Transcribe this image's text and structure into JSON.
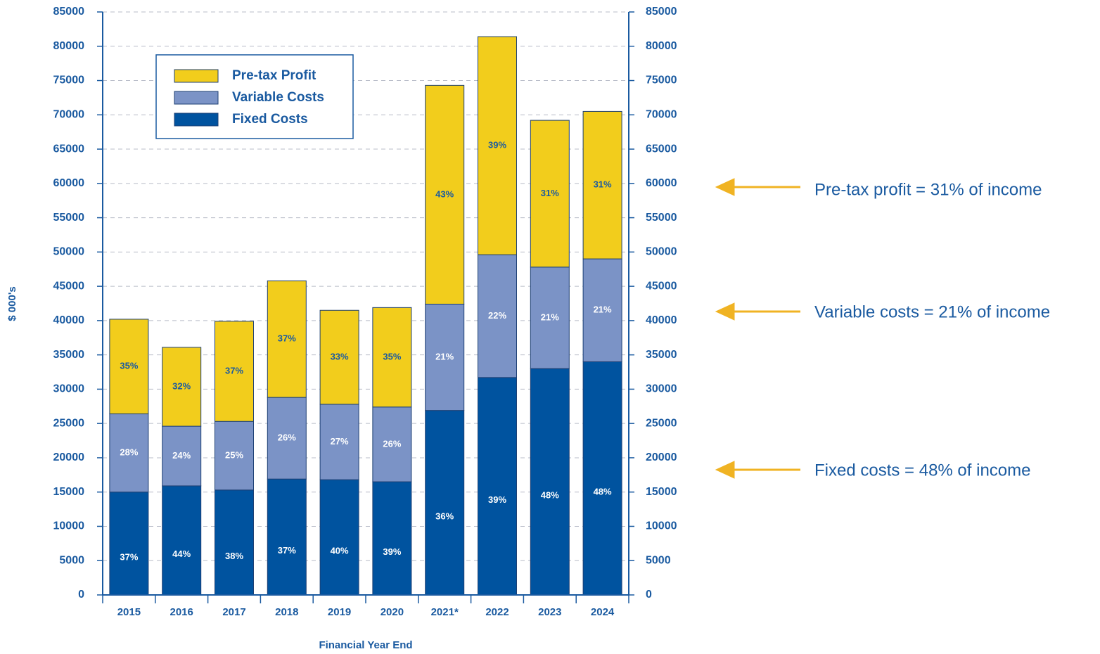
{
  "chart_data": {
    "type": "stacked_bar",
    "y_label": "$ 000's",
    "x_label": "Financial Year End",
    "categories": [
      "2015",
      "2016",
      "2017",
      "2018",
      "2019",
      "2020",
      "2021*",
      "2022",
      "2023",
      "2024"
    ],
    "series": [
      {
        "name": "Fixed Costs",
        "color": "#00539f",
        "label_color": "#ffffff",
        "values": [
          15000,
          15900,
          15300,
          16900,
          16800,
          16500,
          26900,
          31700,
          33000,
          34000
        ],
        "share_labels": [
          "37%",
          "44%",
          "38%",
          "37%",
          "40%",
          "39%",
          "36%",
          "39%",
          "48%",
          "48%"
        ]
      },
      {
        "name": "Variable Costs",
        "color": "#7b93c6",
        "label_color": "#ffffff",
        "values": [
          11400,
          8700,
          10000,
          11900,
          11000,
          10900,
          15500,
          17900,
          14800,
          15000
        ],
        "share_labels": [
          "28%",
          "24%",
          "25%",
          "26%",
          "27%",
          "26%",
          "21%",
          "22%",
          "21%",
          "21%"
        ]
      },
      {
        "name": "Pre-tax Profit",
        "color": "#f2cd1c",
        "label_color": "#1a5aa0",
        "values": [
          13800,
          11500,
          14600,
          17000,
          13700,
          14500,
          31900,
          31800,
          21400,
          21500
        ],
        "share_labels": [
          "35%",
          "32%",
          "37%",
          "37%",
          "33%",
          "35%",
          "43%",
          "39%",
          "31%",
          "31%"
        ]
      }
    ],
    "ylim": [
      0,
      85000
    ],
    "yticks": [
      0,
      5000,
      10000,
      15000,
      20000,
      25000,
      30000,
      35000,
      40000,
      45000,
      50000,
      55000,
      60000,
      65000,
      70000,
      75000,
      80000,
      85000
    ],
    "y2lim": [
      0,
      85000
    ],
    "y2ticks": [
      0,
      5000,
      10000,
      15000,
      20000,
      25000,
      30000,
      35000,
      40000,
      45000,
      50000,
      55000,
      60000,
      65000,
      70000,
      75000,
      80000,
      85000
    ],
    "grid": true,
    "legend": "upper left",
    "annotations": [
      "Pre-tax profit = 31% of income",
      "Variable costs = 21% of income",
      "Fixed costs = 48% of income"
    ]
  }
}
